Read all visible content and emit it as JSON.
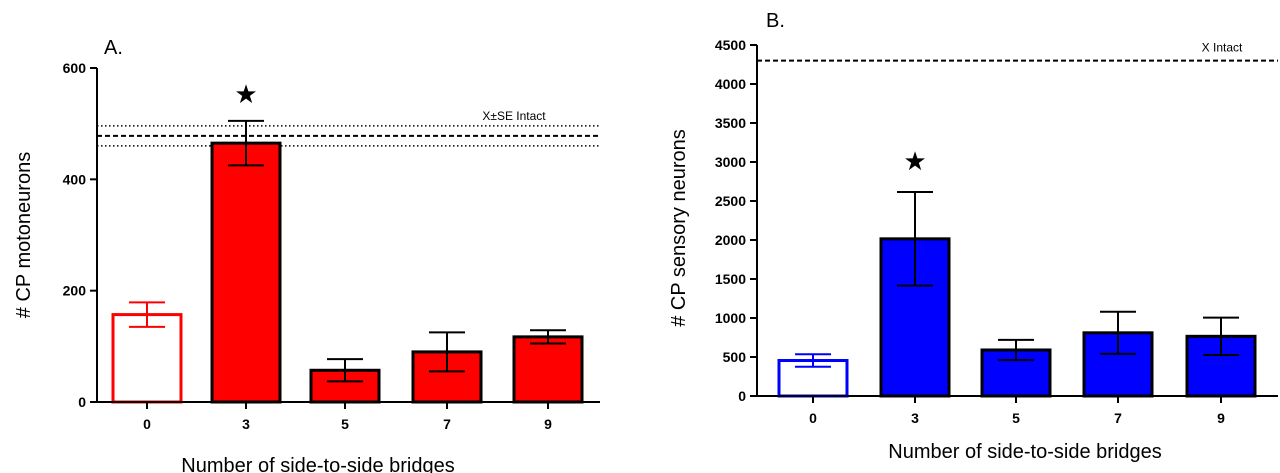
{
  "chart_data": [
    {
      "type": "bar",
      "panel_label": "A.",
      "categories": [
        "0",
        "3",
        "5",
        "7",
        "9"
      ],
      "values": [
        157,
        465,
        57,
        90,
        117
      ],
      "errors": [
        22,
        40,
        20,
        35,
        12
      ],
      "bar_fill": [
        "#ffffff",
        "#ff0000",
        "#ff0000",
        "#ff0000",
        "#ff0000"
      ],
      "bar_stroke": [
        "#ff0000",
        "#000000",
        "#000000",
        "#000000",
        "#000000"
      ],
      "error_color": [
        "#ff0000",
        "#000000",
        "#000000",
        "#000000",
        "#000000"
      ],
      "significance_marker": "★",
      "significant_index": 1,
      "xlabel": "Number of side-to-side bridges",
      "ylabel": "# CP motoneurons",
      "ylim": [
        0,
        600
      ],
      "yticks": [
        0,
        200,
        400,
        600
      ],
      "reference": {
        "label": "X±SE Intact",
        "mean": 478,
        "se_low": 460,
        "se_high": 496
      },
      "grid": false
    },
    {
      "type": "bar",
      "panel_label": "B.",
      "categories": [
        "0",
        "3",
        "5",
        "7",
        "9"
      ],
      "values": [
        455,
        2015,
        590,
        810,
        765
      ],
      "errors": [
        80,
        600,
        130,
        270,
        240
      ],
      "bar_fill": [
        "#ffffff",
        "#0000ff",
        "#0000ff",
        "#0000ff",
        "#0000ff"
      ],
      "bar_stroke": [
        "#0000ff",
        "#000000",
        "#000000",
        "#000000",
        "#000000"
      ],
      "error_color": [
        "#0000ff",
        "#000000",
        "#000000",
        "#000000",
        "#000000"
      ],
      "significance_marker": "★",
      "significant_index": 1,
      "xlabel": "Number of side-to-side bridges",
      "ylabel": "# CP sensory neurons",
      "ylim": [
        0,
        4500
      ],
      "yticks": [
        0,
        500,
        1000,
        1500,
        2000,
        2500,
        3000,
        3500,
        4000,
        4500
      ],
      "reference": {
        "label": "X Intact",
        "mean": 4300
      },
      "grid": false
    }
  ]
}
